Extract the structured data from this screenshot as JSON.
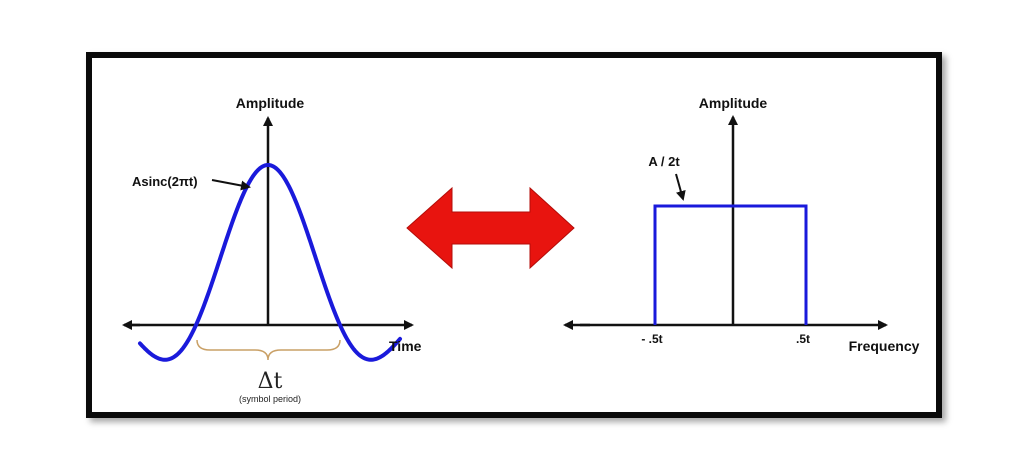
{
  "left_panel": {
    "y_axis_label": "Amplitude",
    "x_axis_label": "Time",
    "curve_label": "Asinc(2πt)",
    "delta_label": "Δt",
    "delta_caption": "(symbol period)"
  },
  "right_panel": {
    "y_axis_label": "Amplitude",
    "x_axis_label": "Frequency",
    "height_label": "A / 2t",
    "tick_left": "- .5t",
    "tick_right": ".5t"
  },
  "colors": {
    "curve": "#1a1adb",
    "double_arrow": "#e8140f",
    "axis": "#111111",
    "brace": "#c9a066",
    "frame": "#0a0a0a"
  },
  "icons": {
    "double_arrow": "left-right-arrow-icon"
  }
}
